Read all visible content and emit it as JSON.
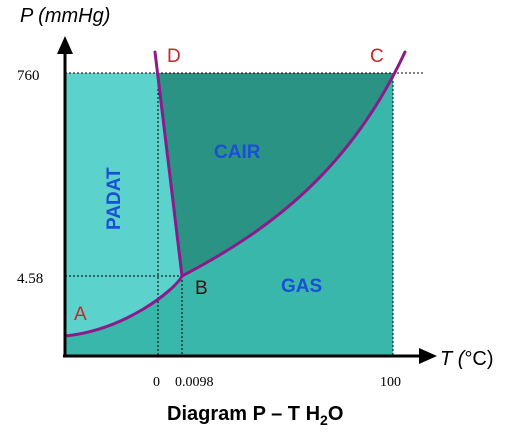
{
  "diagram": {
    "title": "Diagram P – T H",
    "title_subscript": "2",
    "title_suffix": "O",
    "axis_y_label": "P (mmHg)",
    "axis_x_label_prefix": "T (",
    "axis_x_label_unit": "°C)",
    "y_ticks": [
      {
        "label": "760"
      },
      {
        "label": "4.58"
      }
    ],
    "x_ticks": [
      {
        "label": "0"
      },
      {
        "label": "0.0098"
      },
      {
        "label": "100"
      }
    ],
    "regions": {
      "solid": "PADAT",
      "liquid": "CAIR",
      "gas": "GAS"
    },
    "points": {
      "a": "A",
      "b": "B",
      "c": "C",
      "d": "D"
    },
    "colors": {
      "solid_fill": "#5cd2cc",
      "liquid_fill": "#2a9384",
      "gas_fill": "#38b7aa",
      "curve": "#8c1a8c",
      "region_text": "#1a4fd6",
      "point_text": "#c82828",
      "axis": "#000000"
    }
  }
}
